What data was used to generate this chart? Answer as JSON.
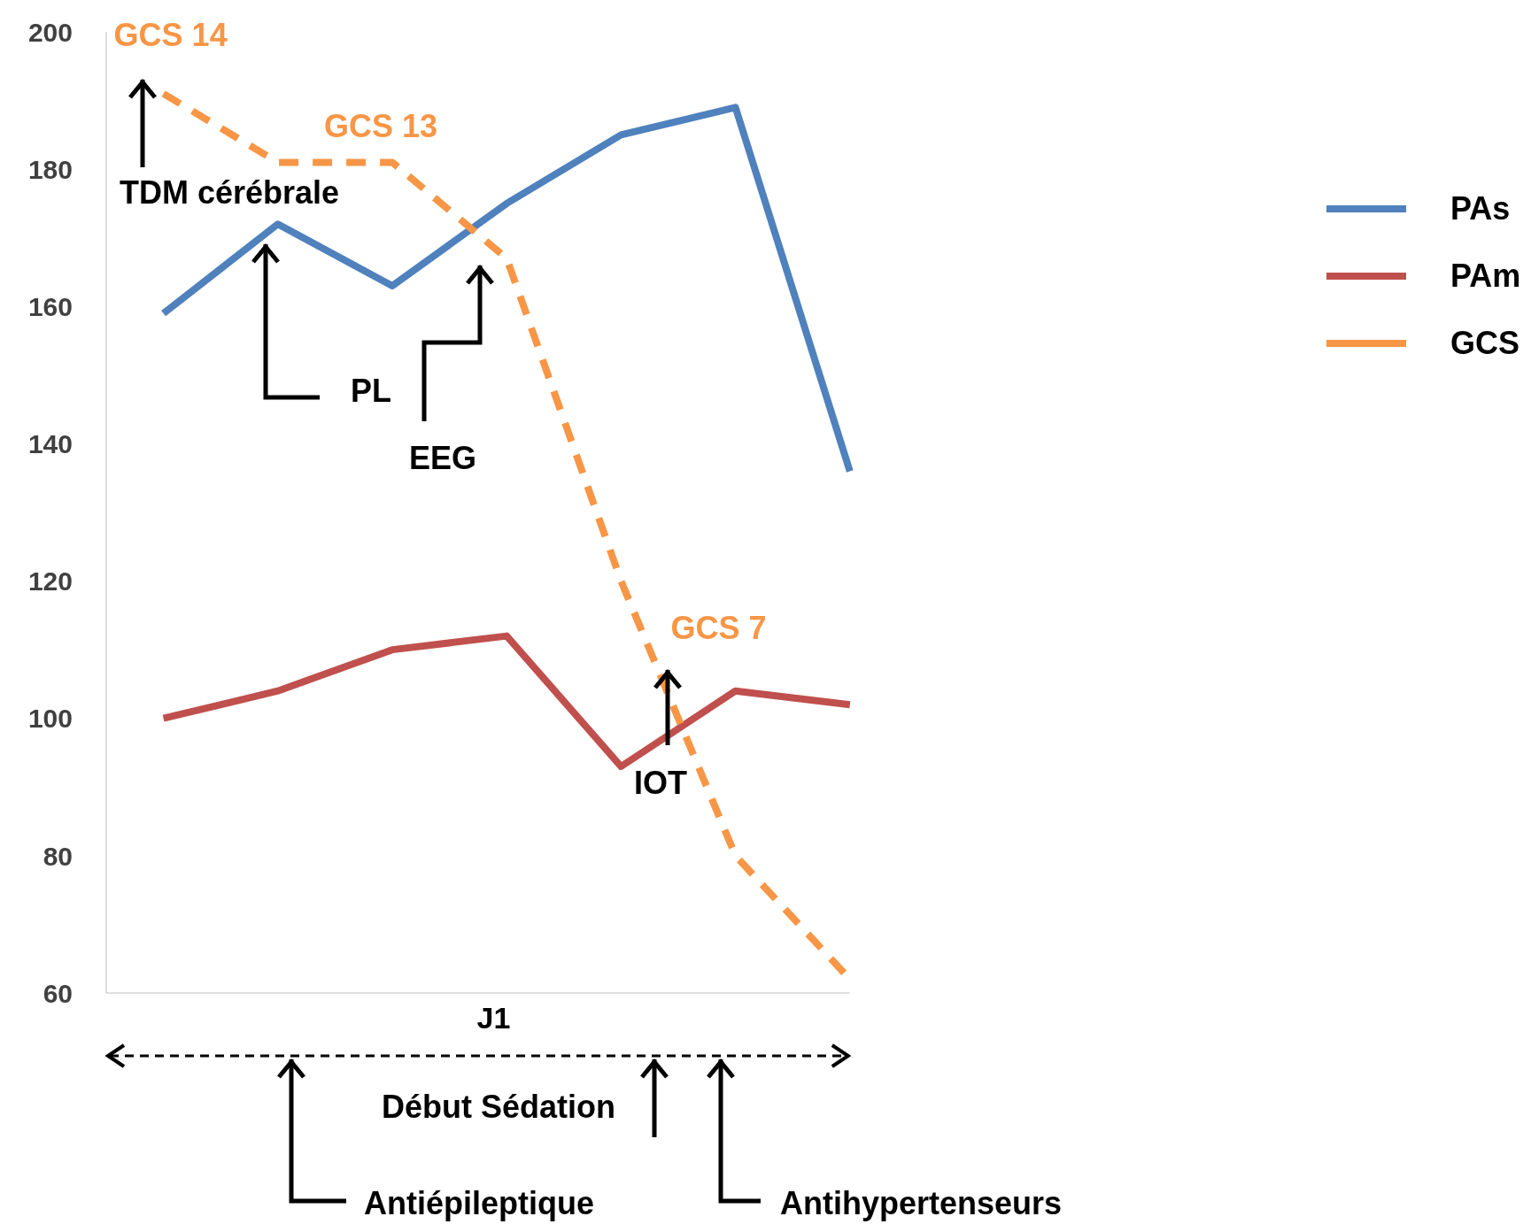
{
  "chart_data": {
    "type": "line",
    "xlabel": "J1",
    "categories": [
      null,
      null,
      null,
      null,
      null,
      null,
      null
    ],
    "ylim": [
      60,
      200
    ],
    "yticks": [
      60,
      80,
      100,
      120,
      140,
      160,
      180,
      200
    ],
    "legend": "top right",
    "marker": "none",
    "series": [
      {
        "name": "PAs",
        "color": "#4f81bd",
        "values": [
          159,
          172,
          163,
          175,
          185,
          189,
          136
        ]
      },
      {
        "name": "PAm",
        "color": "#c0504d",
        "values": [
          100,
          104,
          110,
          112,
          93,
          104,
          102
        ]
      },
      {
        "name": "GCS",
        "color": "#f79646",
        "line_style": "dashed",
        "values": [
          191,
          181,
          181,
          167,
          120,
          80,
          62
        ],
        "value_labels": [
          "GCS 14",
          null,
          "GCS 13",
          null,
          "GCS 7",
          null,
          null
        ]
      }
    ],
    "annotations": [
      "TDM cérébrale",
      "PL",
      "EEG",
      "IOT",
      "Début Sédation",
      "Antiépileptique",
      "Antihypertenseurs"
    ]
  }
}
